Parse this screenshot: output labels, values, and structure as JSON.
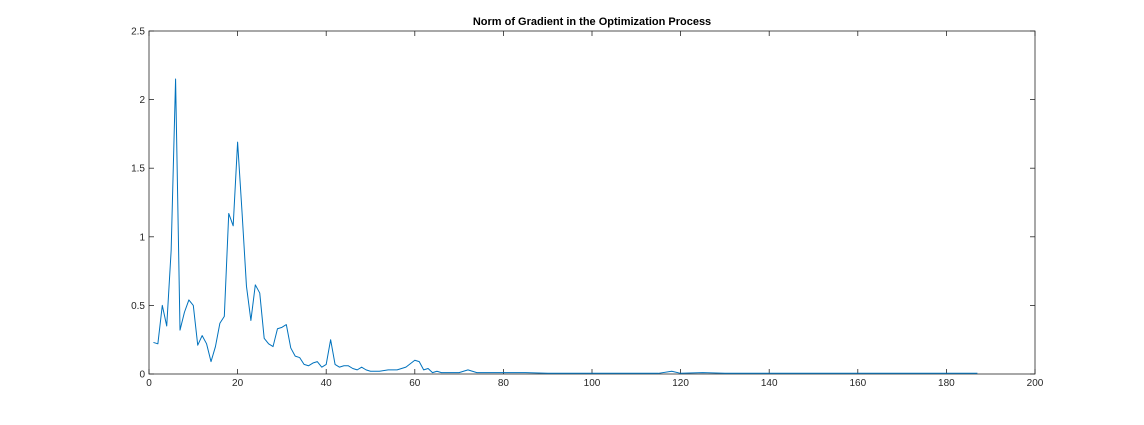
{
  "chart_data": {
    "type": "line",
    "title": "Norm of Gradient in the Optimization Process",
    "xlabel": "",
    "ylabel": "",
    "xlim": [
      0,
      200
    ],
    "ylim": [
      0,
      2.5
    ],
    "xticks": [
      0,
      20,
      40,
      60,
      80,
      100,
      120,
      140,
      160,
      180,
      200
    ],
    "yticks": [
      0,
      0.5,
      1,
      1.5,
      2,
      2.5
    ],
    "xtick_labels": [
      "0",
      "20",
      "40",
      "60",
      "80",
      "100",
      "120",
      "140",
      "160",
      "180",
      "200"
    ],
    "ytick_labels": [
      "0",
      "0.5",
      "1",
      "1.5",
      "2",
      "2.5"
    ],
    "grid": false,
    "line_color": "#0072BD",
    "series": [
      {
        "x": [
          1,
          2,
          3,
          4,
          5,
          6,
          7,
          8,
          9,
          10,
          11,
          12,
          13,
          14,
          15,
          16,
          17,
          18,
          19,
          20,
          21,
          22,
          23,
          24,
          25,
          26,
          27,
          28,
          29,
          30,
          31,
          32,
          33,
          34,
          35,
          36,
          37,
          38,
          39,
          40,
          41,
          42,
          43,
          44,
          45,
          46,
          47,
          48,
          49,
          50,
          52,
          54,
          56,
          58,
          60,
          61,
          62,
          63,
          64,
          65,
          66,
          68,
          70,
          72,
          74,
          76,
          78,
          80,
          85,
          90,
          95,
          100,
          105,
          110,
          115,
          118,
          120,
          125,
          130,
          135,
          140,
          145,
          150,
          155,
          160,
          165,
          170,
          175,
          180,
          185,
          187
        ],
        "y": [
          0.23,
          0.22,
          0.5,
          0.35,
          0.9,
          2.15,
          0.32,
          0.45,
          0.54,
          0.5,
          0.21,
          0.28,
          0.22,
          0.09,
          0.2,
          0.37,
          0.42,
          1.17,
          1.08,
          1.69,
          1.18,
          0.64,
          0.39,
          0.65,
          0.59,
          0.26,
          0.22,
          0.2,
          0.33,
          0.34,
          0.36,
          0.19,
          0.13,
          0.12,
          0.07,
          0.06,
          0.08,
          0.09,
          0.05,
          0.07,
          0.25,
          0.07,
          0.05,
          0.06,
          0.06,
          0.04,
          0.03,
          0.05,
          0.03,
          0.02,
          0.02,
          0.03,
          0.03,
          0.05,
          0.1,
          0.09,
          0.03,
          0.04,
          0.01,
          0.02,
          0.01,
          0.01,
          0.01,
          0.03,
          0.01,
          0.01,
          0.01,
          0.01,
          0.01,
          0.005,
          0.005,
          0.005,
          0.005,
          0.005,
          0.005,
          0.02,
          0.005,
          0.01,
          0.005,
          0.005,
          0.005,
          0.005,
          0.005,
          0.005,
          0.005,
          0.005,
          0.005,
          0.005,
          0.005,
          0.005,
          0.005
        ]
      }
    ]
  }
}
